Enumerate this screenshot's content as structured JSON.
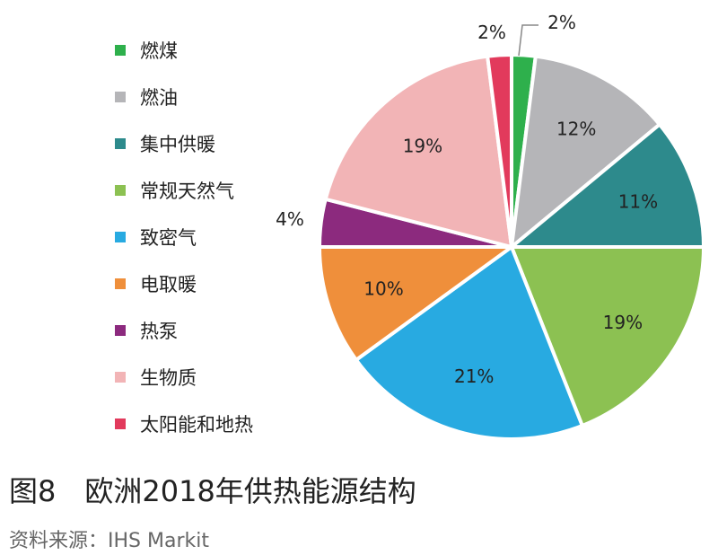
{
  "chart_data": {
    "type": "pie",
    "title": "图8　欧洲2018年供热能源结构",
    "source": "资料来源：IHS Markit",
    "legend_position": "left",
    "slices": [
      {
        "label": "燃煤",
        "value": 2,
        "text": "2%",
        "color": "#2eb04c"
      },
      {
        "label": "燃油",
        "value": 12,
        "text": "12%",
        "color": "#b5b5b8"
      },
      {
        "label": "集中供暖",
        "value": 11,
        "text": "11%",
        "color": "#2d8a8c"
      },
      {
        "label": "常规天然气",
        "value": 19,
        "text": "19%",
        "color": "#8cc152"
      },
      {
        "label": "致密气",
        "value": 21,
        "text": "21%",
        "color": "#28aae1"
      },
      {
        "label": "电取暖",
        "value": 10,
        "text": "10%",
        "color": "#ef8f3b"
      },
      {
        "label": "热泵",
        "value": 4,
        "text": "4%",
        "color": "#8c2a7e"
      },
      {
        "label": "生物质",
        "value": 19,
        "text": "19%",
        "color": "#f2b4b6"
      },
      {
        "label": "太阳能和地热",
        "value": 2,
        "text": "2%",
        "color": "#e23a5c"
      }
    ]
  }
}
